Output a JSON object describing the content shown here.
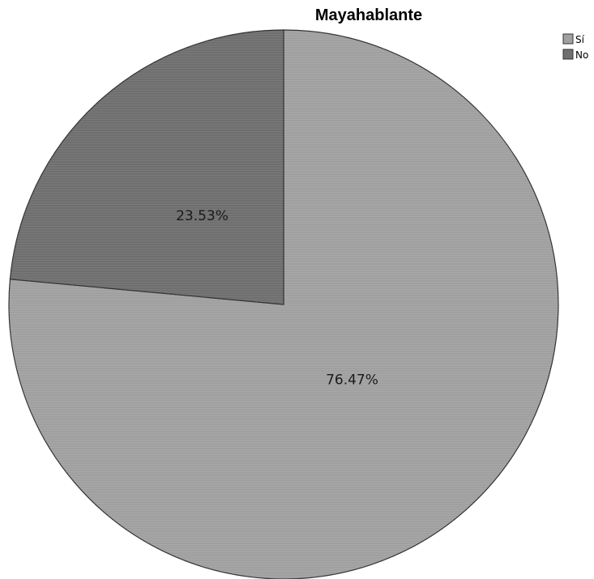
{
  "chart_data": {
    "type": "pie",
    "title": "Mayahablante",
    "slices": [
      {
        "label": "Sí",
        "value": 76.47,
        "display": "76.47%",
        "color": "#a0a0a0"
      },
      {
        "label": "No",
        "value": 23.53,
        "display": "23.53%",
        "color": "#6f6f6f"
      }
    ],
    "start_angle_deg": 0,
    "direction": "clockwise",
    "legend_position": "top-right"
  }
}
